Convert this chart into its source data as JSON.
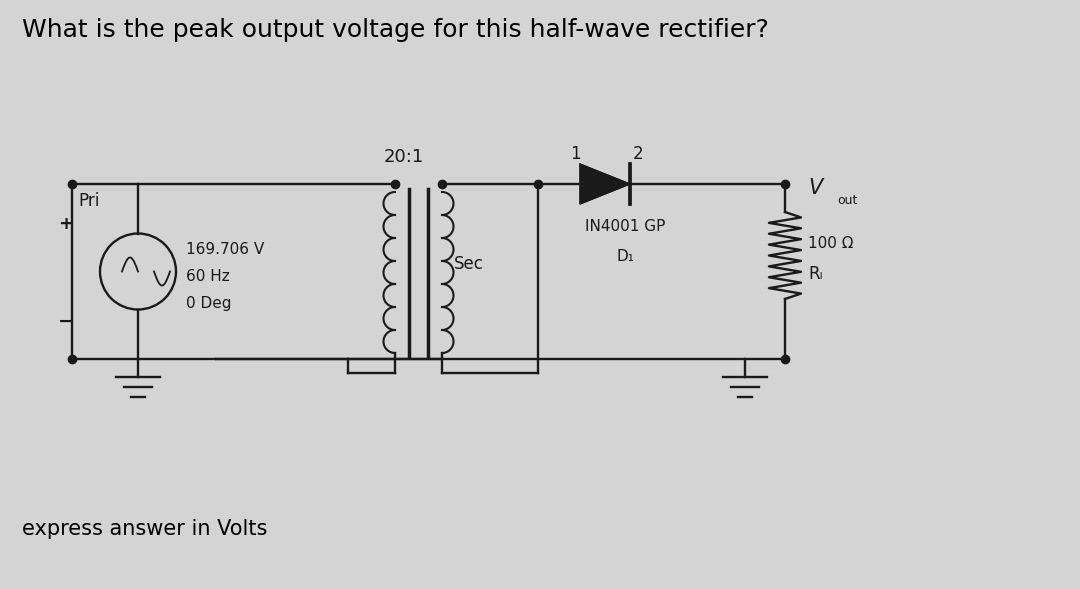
{
  "title": "What is the peak output voltage for this half-wave rectifier?",
  "subtitle": "express answer in Volts",
  "bg_color": "#d4d4d4",
  "title_fontsize": 18,
  "subtitle_fontsize": 15,
  "source_v": "169.706 V",
  "source_hz": "60 Hz",
  "source_deg": "0 Deg",
  "pri_label": "Pri",
  "sec_label": "Sec",
  "ratio_label": "20:1",
  "diode_label": "IN4001 GP",
  "diode_sub": "D₁",
  "resistor_val": "100 Ω",
  "resistor_name": "Rₗ",
  "vout_main": "V",
  "vout_sub": "out",
  "node1": "1",
  "node2": "2",
  "plus": "+",
  "minus": "−",
  "line_color": "#1a1a1a"
}
